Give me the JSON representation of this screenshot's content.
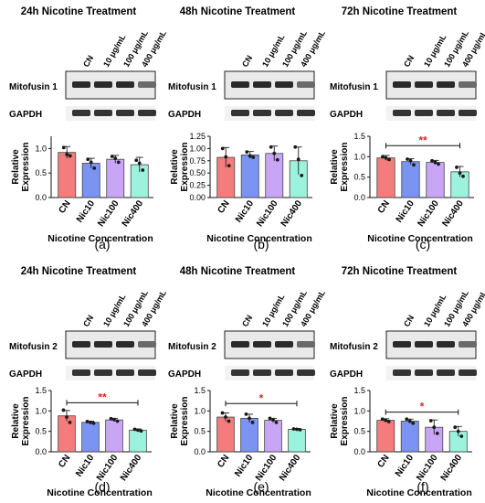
{
  "colors": {
    "CN": "#f47c7c",
    "Nic10": "#7b93f3",
    "Nic100": "#c9a6f5",
    "Nic400": "#9cf3dd",
    "sig": "#e0202a"
  },
  "row_label_gapdh": "GAPDH",
  "concentration_labels": [
    "CN",
    "10 μg/mL",
    "100 μg/mL",
    "400 μg/mL"
  ],
  "panel_letters": [
    "(a)",
    "(b)",
    "(c)",
    "(d)",
    "(e)",
    "(f)"
  ],
  "chart_data": [
    {
      "type": "bar",
      "panel": "(a)",
      "title": "24h Nicotine Treatment",
      "protein": "Mitofusin 1",
      "categories": [
        "CN",
        "Nic10",
        "Nic100",
        "Nic400"
      ],
      "values": [
        0.92,
        0.7,
        0.78,
        0.67
      ],
      "errors": [
        0.12,
        0.1,
        0.08,
        0.15
      ],
      "points": [
        [
          1.02,
          0.88,
          0.85
        ],
        [
          0.78,
          0.72,
          0.6
        ],
        [
          0.84,
          0.8,
          0.72
        ],
        [
          0.76,
          0.7,
          0.56
        ]
      ],
      "ylabel": "Relative\nExpression",
      "xlabel": "Nicotine Concentration",
      "ylim": [
        0,
        1.25
      ],
      "yticks": [
        "0.0",
        "0.5",
        "1.0"
      ],
      "significance": null
    },
    {
      "type": "bar",
      "panel": "(b)",
      "title": "48h Nicotine Treatment",
      "protein": "Mitofusin 1",
      "categories": [
        "CN",
        "Nic10",
        "Nic100",
        "Nic400"
      ],
      "values": [
        0.82,
        0.87,
        0.9,
        0.75
      ],
      "errors": [
        0.2,
        0.07,
        0.15,
        0.28
      ],
      "points": [
        [
          1.0,
          0.83,
          0.65
        ],
        [
          0.93,
          0.85,
          0.82
        ],
        [
          1.03,
          0.9,
          0.77
        ],
        [
          1.03,
          0.78,
          0.45
        ]
      ],
      "ylabel": "Relative\nExpression",
      "xlabel": "Nicotine Concentration",
      "ylim": [
        0,
        1.25
      ],
      "yticks": [
        "0.00",
        "0.25",
        "0.50",
        "0.75",
        "1.00",
        "1.25"
      ],
      "significance": null
    },
    {
      "type": "bar",
      "panel": "(c)",
      "title": "72h Nicotine Treatment",
      "protein": "Mitofusin 1",
      "categories": [
        "CN",
        "Nic10",
        "Nic100",
        "Nic400"
      ],
      "values": [
        0.97,
        0.88,
        0.86,
        0.63
      ],
      "errors": [
        0.06,
        0.07,
        0.05,
        0.13
      ],
      "points": [
        [
          1.0,
          0.97,
          0.93
        ],
        [
          0.94,
          0.9,
          0.8
        ],
        [
          0.9,
          0.86,
          0.82
        ],
        [
          0.74,
          0.6,
          0.52
        ]
      ],
      "ylabel": "Relative\nExpression",
      "xlabel": "Nicotine Concentration",
      "ylim": [
        0,
        1.5
      ],
      "yticks": [
        "0.0",
        "0.5",
        "1.0",
        "1.5"
      ],
      "significance": {
        "label": "**",
        "from": "CN",
        "to": "Nic400",
        "y": 1.27
      }
    },
    {
      "type": "bar",
      "panel": "(d)",
      "title": "24h Nicotine Treatment",
      "protein": "Mitofusin 2",
      "categories": [
        "CN",
        "Nic10",
        "Nic100",
        "Nic400"
      ],
      "values": [
        0.88,
        0.72,
        0.78,
        0.53
      ],
      "errors": [
        0.13,
        0.03,
        0.04,
        0.03
      ],
      "points": [
        [
          1.02,
          0.85,
          0.72
        ],
        [
          0.74,
          0.72,
          0.7
        ],
        [
          0.81,
          0.79,
          0.75
        ],
        [
          0.55,
          0.53,
          0.51
        ]
      ],
      "ylabel": "Relative\nExpression",
      "xlabel": "Nicotine Concentration",
      "ylim": [
        0,
        1.5
      ],
      "yticks": [
        "0.0",
        "0.5",
        "1.0",
        "1.5"
      ],
      "significance": {
        "label": "**",
        "from": "CN",
        "to": "Nic400",
        "y": 1.2
      }
    },
    {
      "type": "bar",
      "panel": "(e)",
      "title": "48h Nicotine Treatment",
      "protein": "Mitofusin 2",
      "categories": [
        "CN",
        "Nic10",
        "Nic100",
        "Nic400"
      ],
      "values": [
        0.85,
        0.82,
        0.77,
        0.55
      ],
      "errors": [
        0.1,
        0.1,
        0.05,
        0.02
      ],
      "points": [
        [
          0.95,
          0.85,
          0.75
        ],
        [
          0.92,
          0.82,
          0.72
        ],
        [
          0.82,
          0.78,
          0.72
        ],
        [
          0.56,
          0.55,
          0.54
        ]
      ],
      "ylabel": "Relative\nExpression",
      "xlabel": "Nicotine Concentration",
      "ylim": [
        0,
        1.5
      ],
      "yticks": [
        "0.0",
        "0.5",
        "1.0",
        "1.5"
      ],
      "significance": {
        "label": "*",
        "from": "CN",
        "to": "Nic400",
        "y": 1.18
      }
    },
    {
      "type": "bar",
      "panel": "(f)",
      "title": "72h Nicotine Treatment",
      "protein": "Mitofusin 2",
      "categories": [
        "CN",
        "Nic10",
        "Nic100",
        "Nic400"
      ],
      "values": [
        0.77,
        0.75,
        0.6,
        0.5
      ],
      "errors": [
        0.04,
        0.05,
        0.18,
        0.12
      ],
      "points": [
        [
          0.8,
          0.77,
          0.74
        ],
        [
          0.8,
          0.75,
          0.7
        ],
        [
          0.76,
          0.6,
          0.45
        ],
        [
          0.6,
          0.5,
          0.38
        ]
      ],
      "ylabel": "Relative\nExpression",
      "xlabel": "Nicotine Concentration",
      "ylim": [
        0,
        1.5
      ],
      "yticks": [
        "0.0",
        "0.5",
        "1.0",
        "1.5"
      ],
      "significance": {
        "label": "*",
        "from": "CN",
        "to": "Nic400",
        "y": 0.97
      }
    }
  ]
}
